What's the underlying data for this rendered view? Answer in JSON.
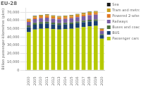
{
  "chart_data": {
    "type": "bar",
    "stacked": true,
    "title": "EU-28",
    "ylabel": "Billion passenger-kilometres (pkm)",
    "categories": [
      "2000",
      "2005",
      "2010",
      "2011",
      "2012",
      "2013",
      "2014",
      "2015",
      "2016",
      "2017",
      "2018",
      "2019",
      "2020"
    ],
    "series": [
      {
        "name": "Passenger cars",
        "color": "#b5c900",
        "values": [
          46000,
          49000,
          50000,
          50500,
          49500,
          49000,
          49500,
          50000,
          51000,
          52000,
          53000,
          53500,
          38000
        ]
      },
      {
        "name": "BUS",
        "color": "#1a3f6f",
        "values": [
          5800,
          5900,
          5900,
          5900,
          5800,
          5750,
          5700,
          5700,
          5750,
          5800,
          5800,
          5800,
          4200
        ]
      },
      {
        "name": "Buses and coaches",
        "color": "#4a6e3e",
        "values": [
          2200,
          2200,
          2100,
          2100,
          2050,
          2000,
          2000,
          2000,
          2000,
          2000,
          2000,
          2000,
          1400
        ]
      },
      {
        "name": "Railways",
        "color": "#7a5fa5",
        "values": [
          4200,
          4500,
          4800,
          4900,
          4800,
          4750,
          4800,
          5000,
          5200,
          5400,
          5600,
          5700,
          3800
        ]
      },
      {
        "name": "Powered 2-wheelers",
        "color": "#e07b2a",
        "values": [
          2200,
          2300,
          2200,
          2200,
          2100,
          2050,
          2000,
          2000,
          2050,
          2100,
          2100,
          2100,
          1400
        ]
      },
      {
        "name": "Tram and metro",
        "color": "#c8a020",
        "values": [
          1200,
          1300,
          1400,
          1400,
          1400,
          1400,
          1450,
          1500,
          1550,
          1600,
          1650,
          1700,
          1200
        ]
      },
      {
        "name": "Sea",
        "color": "#1a1a1a",
        "values": [
          400,
          400,
          420,
          420,
          420,
          420,
          420,
          420,
          420,
          420,
          420,
          420,
          300
        ]
      }
    ],
    "ylim": [
      0,
      75000
    ],
    "yticks": [
      0,
      {
        "value": 10000,
        "label": "10,000"
      },
      {
        "value": 20000,
        "label": "20,000"
      },
      {
        "value": 30000,
        "label": "30,000"
      },
      {
        "value": 40000,
        "label": "40,000"
      },
      {
        "value": 50000,
        "label": "50,000"
      },
      {
        "value": 60000,
        "label": "60,000"
      },
      {
        "value": 70000,
        "label": "70,000"
      }
    ],
    "grid": true,
    "legend": "upper right"
  }
}
